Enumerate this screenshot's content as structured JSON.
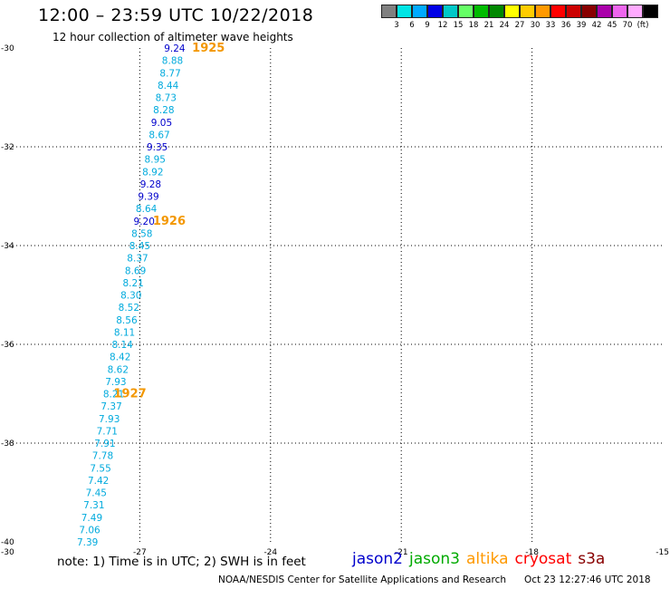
{
  "header": {
    "title": "12:00 – 23:59 UTC 10/22/2018",
    "subtitle": "12 hour collection of altimeter wave heights"
  },
  "legend": {
    "unit": "(ft)",
    "swatches": [
      {
        "color": "#808080",
        "label": ""
      },
      {
        "color": "#00e5e5",
        "label": "3"
      },
      {
        "color": "#00aaff",
        "label": "6"
      },
      {
        "color": "#0000e6",
        "label": "9"
      },
      {
        "color": "#00c8c8",
        "label": "12"
      },
      {
        "color": "#66ff66",
        "label": "15"
      },
      {
        "color": "#00bb00",
        "label": "18"
      },
      {
        "color": "#008800",
        "label": "21"
      },
      {
        "color": "#ffff00",
        "label": "24"
      },
      {
        "color": "#ffcc00",
        "label": "27"
      },
      {
        "color": "#ff9900",
        "label": "30"
      },
      {
        "color": "#ff0000",
        "label": "33"
      },
      {
        "color": "#cc0000",
        "label": "36"
      },
      {
        "color": "#880000",
        "label": "39"
      },
      {
        "color": "#aa00aa",
        "label": "42"
      },
      {
        "color": "#ee66ee",
        "label": "45"
      },
      {
        "color": "#ffaaff",
        "label": "70"
      },
      {
        "color": "#000000",
        "label": ""
      }
    ]
  },
  "axes": {
    "lat_ticks": [
      "-30",
      "-32",
      "-34",
      "-36",
      "-38",
      "-40"
    ],
    "lon_ticks": [
      "-30",
      "-27",
      "-24",
      "-21",
      "-18",
      "-15"
    ],
    "grid": "dotted"
  },
  "chart_data": {
    "type": "scatter",
    "x_axis": {
      "label": "longitude",
      "range": [
        -30,
        -15
      ]
    },
    "y_axis": {
      "label": "latitude",
      "range": [
        -40,
        -30
      ]
    },
    "swh_points": [
      {
        "text": "9.24",
        "lat": -30.0,
        "lon": -26.2,
        "color": "#0000cc"
      },
      {
        "text": "8.88",
        "lat": -30.25,
        "lon": -26.25,
        "color": "#00aadd"
      },
      {
        "text": "8.77",
        "lat": -30.5,
        "lon": -26.3,
        "color": "#00aadd"
      },
      {
        "text": "8.44",
        "lat": -30.75,
        "lon": -26.35,
        "color": "#00aadd"
      },
      {
        "text": "8.73",
        "lat": -31.0,
        "lon": -26.4,
        "color": "#00aadd"
      },
      {
        "text": "8.28",
        "lat": -31.25,
        "lon": -26.45,
        "color": "#00aadd"
      },
      {
        "text": "9.05",
        "lat": -31.5,
        "lon": -26.5,
        "color": "#0000cc"
      },
      {
        "text": "8.67",
        "lat": -31.75,
        "lon": -26.55,
        "color": "#00aadd"
      },
      {
        "text": "9.35",
        "lat": -32.0,
        "lon": -26.6,
        "color": "#0000cc"
      },
      {
        "text": "8.95",
        "lat": -32.25,
        "lon": -26.65,
        "color": "#00aadd"
      },
      {
        "text": "8.92",
        "lat": -32.5,
        "lon": -26.7,
        "color": "#00aadd"
      },
      {
        "text": "9.28",
        "lat": -32.75,
        "lon": -26.75,
        "color": "#0000cc"
      },
      {
        "text": "9.39",
        "lat": -33.0,
        "lon": -26.8,
        "color": "#0000cc"
      },
      {
        "text": "8.64",
        "lat": -33.25,
        "lon": -26.85,
        "color": "#00aadd"
      },
      {
        "text": "9.20",
        "lat": -33.5,
        "lon": -26.9,
        "color": "#0000cc"
      },
      {
        "text": "8.58",
        "lat": -33.75,
        "lon": -26.95,
        "color": "#00aadd"
      },
      {
        "text": "8.45",
        "lat": -34.0,
        "lon": -27.0,
        "color": "#00aadd"
      },
      {
        "text": "8.37",
        "lat": -34.25,
        "lon": -27.05,
        "color": "#00aadd"
      },
      {
        "text": "8.69",
        "lat": -34.5,
        "lon": -27.1,
        "color": "#00aadd"
      },
      {
        "text": "8.21",
        "lat": -34.75,
        "lon": -27.15,
        "color": "#00aadd"
      },
      {
        "text": "8.30",
        "lat": -35.0,
        "lon": -27.2,
        "color": "#00aadd"
      },
      {
        "text": "8.52",
        "lat": -35.25,
        "lon": -27.25,
        "color": "#00aadd"
      },
      {
        "text": "8.56",
        "lat": -35.5,
        "lon": -27.3,
        "color": "#00aadd"
      },
      {
        "text": "8.11",
        "lat": -35.75,
        "lon": -27.35,
        "color": "#00aadd"
      },
      {
        "text": "8.14",
        "lat": -36.0,
        "lon": -27.4,
        "color": "#00aadd"
      },
      {
        "text": "8.42",
        "lat": -36.25,
        "lon": -27.45,
        "color": "#00aadd"
      },
      {
        "text": "8.62",
        "lat": -36.5,
        "lon": -27.5,
        "color": "#00aadd"
      },
      {
        "text": "7.93",
        "lat": -36.75,
        "lon": -27.55,
        "color": "#00aadd"
      },
      {
        "text": "8.21",
        "lat": -37.0,
        "lon": -27.6,
        "color": "#00aadd"
      },
      {
        "text": "7.37",
        "lat": -37.25,
        "lon": -27.65,
        "color": "#00aadd"
      },
      {
        "text": "7.93",
        "lat": -37.5,
        "lon": -27.7,
        "color": "#00aadd"
      },
      {
        "text": "7.71",
        "lat": -37.75,
        "lon": -27.75,
        "color": "#00aadd"
      },
      {
        "text": "7.91",
        "lat": -38.0,
        "lon": -27.8,
        "color": "#00aadd"
      },
      {
        "text": "7.78",
        "lat": -38.25,
        "lon": -27.85,
        "color": "#00aadd"
      },
      {
        "text": "7.55",
        "lat": -38.5,
        "lon": -27.9,
        "color": "#00aadd"
      },
      {
        "text": "7.42",
        "lat": -38.75,
        "lon": -27.95,
        "color": "#00aadd"
      },
      {
        "text": "7.45",
        "lat": -39.0,
        "lon": -28.0,
        "color": "#00aadd"
      },
      {
        "text": "7.31",
        "lat": -39.25,
        "lon": -28.05,
        "color": "#00aadd"
      },
      {
        "text": "7.49",
        "lat": -39.5,
        "lon": -28.1,
        "color": "#00aadd"
      },
      {
        "text": "7.06",
        "lat": -39.75,
        "lon": -28.15,
        "color": "#00aadd"
      },
      {
        "text": "7.39",
        "lat": -40.0,
        "lon": -28.2,
        "color": "#00aadd"
      }
    ],
    "time_labels": [
      {
        "text": "1925",
        "lat": -30.0,
        "lon": -25.8
      },
      {
        "text": "1926",
        "lat": -33.5,
        "lon": -26.7
      },
      {
        "text": "1927",
        "lat": -37.0,
        "lon": -27.6
      }
    ]
  },
  "footer": {
    "note": "note: 1) Time is in UTC; 2) SWH is in feet",
    "satellites": [
      {
        "name": "jason2",
        "color": "#0000cc"
      },
      {
        "name": "jason3",
        "color": "#00aa00"
      },
      {
        "name": "altika",
        "color": "#ff9900"
      },
      {
        "name": "cryosat",
        "color": "#ff0000"
      },
      {
        "name": "s3a",
        "color": "#880000"
      }
    ],
    "credit": "NOAA/NESDIS Center for Satellite Applications and Research",
    "timestamp": "Oct 23 12:27:46 UTC 2018"
  }
}
